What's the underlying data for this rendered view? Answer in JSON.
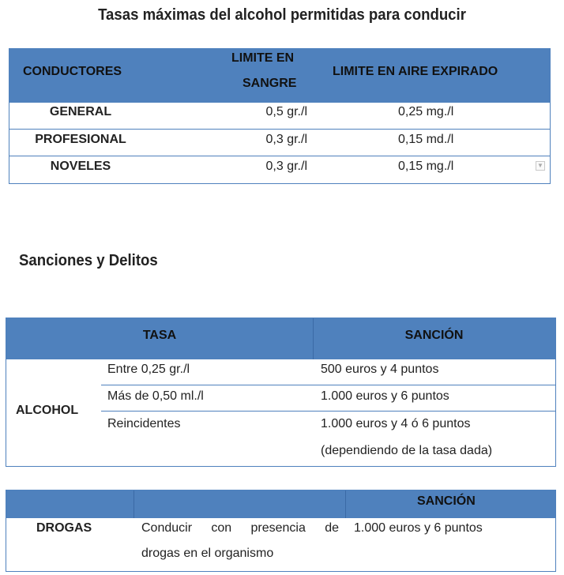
{
  "title": "Tasas máximas del alcohol permitidas para conducir",
  "table1": {
    "headers": [
      "CONDUCTORES",
      "LIMITE EN",
      "SANGRE",
      "LIMITE EN AIRE EXPIRADO"
    ],
    "rows": [
      {
        "type": "GENERAL",
        "sangre": "0,5 gr./l",
        "aire": "0,25 mg./l"
      },
      {
        "type": "PROFESIONAL",
        "sangre": "0,3 gr./l",
        "aire": "0,15 md./l"
      },
      {
        "type": "NOVELES",
        "sangre": "0,3 gr./l",
        "aire": "0,15 mg./l"
      }
    ]
  },
  "subtitle": "Sanciones y Delitos",
  "table2": {
    "headers": [
      "TASA",
      "SANCIÓN"
    ],
    "group": "ALCOHOL",
    "rows": [
      {
        "tasa": "Entre 0,25 gr./l",
        "sancion": "500 euros y 4 puntos"
      },
      {
        "tasa": "Más de 0,50 ml./l",
        "sancion": "1.000 euros y 6 puntos"
      },
      {
        "tasa": "Reincidentes",
        "sancion": "1.000 euros y 4 ó 6 puntos",
        "sancion2": "(dependiendo de la tasa dada)"
      }
    ]
  },
  "table3": {
    "header": "SANCIÓN",
    "group": "DROGAS",
    "desc_line1": "Conducir con presencia de",
    "desc_line2": "drogas en el organismo",
    "sancion": "1.000 euros y 6 puntos"
  }
}
